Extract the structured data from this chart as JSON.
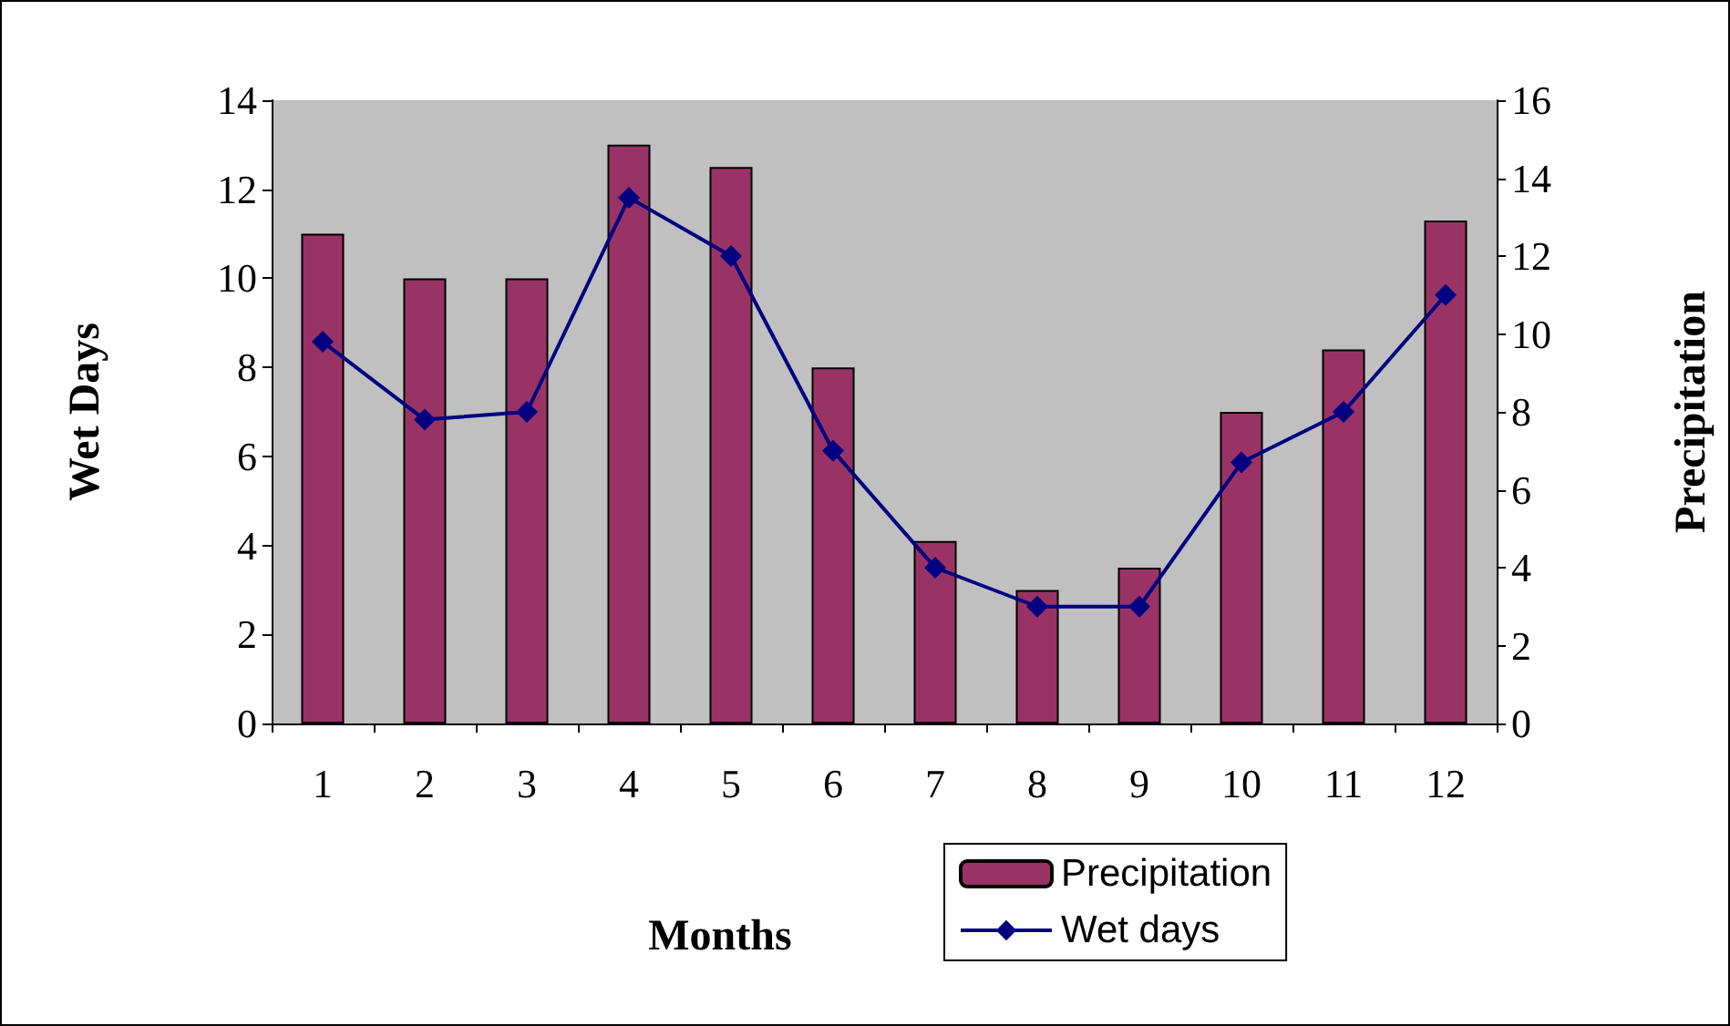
{
  "chart_data": {
    "type": "bar",
    "xlabel": "Months",
    "ylabel": "Wet Days",
    "y2label": "Precipitation",
    "categories": [
      "1",
      "2",
      "3",
      "4",
      "5",
      "6",
      "7",
      "8",
      "9",
      "10",
      "11",
      "12"
    ],
    "series": [
      {
        "name": "Precipitation",
        "color": "#993366",
        "values": [
          11,
          10,
          10,
          13,
          12.5,
          8,
          4.1,
          3,
          3.5,
          7,
          8.4,
          11.3
        ]
      },
      {
        "name": "Wet days",
        "type": "line",
        "axis": "y2",
        "color": "#000080",
        "marker": "diamond",
        "values": [
          9.8,
          7.8,
          8,
          13.5,
          12,
          7,
          4,
          3,
          3,
          6.7,
          8,
          11
        ]
      }
    ],
    "ylim": [
      0,
      14
    ],
    "yticks": [
      0,
      2,
      4,
      6,
      8,
      10,
      12,
      14
    ],
    "y2lim": [
      0,
      16
    ],
    "y2ticks": [
      0,
      2,
      4,
      6,
      8,
      10,
      12,
      14,
      16
    ],
    "legend": "bottom right"
  }
}
